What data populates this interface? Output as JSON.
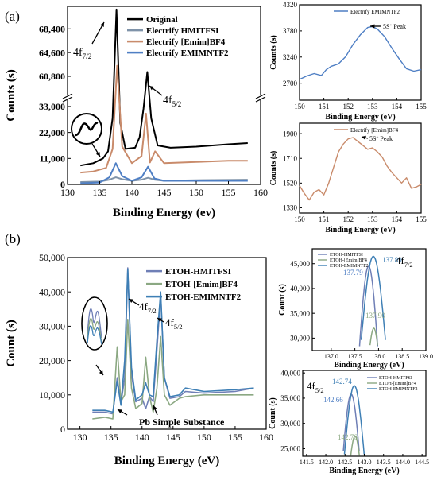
{
  "colors": {
    "original": "#000000",
    "hmitfsi": "#7f93a9",
    "emim_bf4": "#c98b6b",
    "emimntf2": "#4f7fc4",
    "etoh_hmitfsi": "#6f7fb6",
    "etoh_emim": "#8ba882",
    "etoh_emimntf2": "#3e7fb5"
  },
  "chart_data": [
    {
      "id": "a_main",
      "type": "line",
      "panel_label": "(a)",
      "xlabel": "Binding Energy (ev)",
      "ylabel": "Counts (s)",
      "xlim": [
        130,
        160
      ],
      "xticks": [
        "130",
        "135",
        "140",
        "145",
        "150",
        "155",
        "160"
      ],
      "yticks": [
        "0",
        "11,000",
        "22,000",
        "33,000",
        "60,800",
        "64,600",
        "68,400"
      ],
      "legend": [
        "Original",
        "Electrify HMITFSI",
        "Electrify [Emim]BF4",
        "Electrify EMIMNTF2"
      ],
      "annotations": [
        {
          "base": "4f",
          "sub": "7/2"
        },
        {
          "base": "4f",
          "sub": "5/2"
        }
      ],
      "series": [
        {
          "name": "Original",
          "color": "#000000",
          "x": [
            132,
            134,
            135.5,
            136.3,
            137,
            137.6,
            138.2,
            139,
            140.5,
            141.2,
            141.8,
            142.4,
            143,
            144,
            146,
            150,
            155,
            158
          ],
          "y": [
            8000,
            9000,
            11000,
            14000,
            28000,
            71500,
            26000,
            15000,
            15500,
            20000,
            32000,
            61500,
            28000,
            16500,
            15500,
            16000,
            17000,
            17500
          ]
        },
        {
          "name": "Electrify HMITFSI",
          "color": "#7f93a9",
          "x": [
            132,
            135,
            136.5,
            137.5,
            138.5,
            140,
            141.5,
            142.5,
            143.5,
            145,
            150,
            158
          ],
          "y": [
            1000,
            1200,
            2000,
            3000,
            2200,
            1500,
            2000,
            2800,
            2000,
            1500,
            1800,
            2000
          ]
        },
        {
          "name": "Electrify [Emim]BF4",
          "color": "#c98b6b",
          "x": [
            132,
            134,
            136,
            137,
            137.7,
            138.5,
            140,
            141.5,
            142.2,
            142.8,
            143.6,
            145,
            150,
            155,
            158
          ],
          "y": [
            5000,
            5500,
            7000,
            15000,
            62500,
            16000,
            9000,
            12000,
            30000,
            47000,
            14000,
            9000,
            9500,
            10000,
            10000
          ]
        },
        {
          "name": "Electrify EMIMNTF2",
          "color": "#4f7fc4",
          "x": [
            132,
            135,
            136.5,
            137.5,
            138.5,
            140,
            141.5,
            142.5,
            143.5,
            145,
            150,
            158
          ],
          "y": [
            500,
            800,
            3000,
            9000,
            3500,
            1500,
            3000,
            7500,
            2500,
            1500,
            1500,
            1500
          ]
        }
      ]
    },
    {
      "id": "a_top_inset",
      "type": "line",
      "xlabel": "Binding Energy (eV)",
      "ylabel": "Counts (s)",
      "xlim": [
        150,
        155
      ],
      "ylim": [
        2350,
        4320
      ],
      "xticks": [
        "150",
        "151",
        "152",
        "153",
        "154",
        "155"
      ],
      "yticks": [
        "2700",
        "3240",
        "3780",
        "4320"
      ],
      "legend": [
        "Electrify EMIMNTF2"
      ],
      "peak_label": {
        "base": "5S",
        "sup": "+",
        "rest": " Peak"
      },
      "series": [
        {
          "name": "Electrify EMIMNTF2",
          "color": "#4f7fc4",
          "x": [
            150,
            150.3,
            150.6,
            150.9,
            151.1,
            151.3,
            151.6,
            151.9,
            152.2,
            152.5,
            152.8,
            153,
            153.2,
            153.5,
            153.8,
            154.1,
            154.4,
            154.7,
            155
          ],
          "y": [
            2780,
            2850,
            2900,
            2860,
            2980,
            3050,
            3100,
            3250,
            3500,
            3700,
            3850,
            3870,
            3820,
            3660,
            3420,
            3200,
            3000,
            2950,
            2980
          ]
        }
      ]
    },
    {
      "id": "a_bottom_inset",
      "type": "line",
      "xlabel": "Binding Energy (eV)",
      "ylabel": "Counts (s)",
      "xlim": [
        150,
        155
      ],
      "ylim": [
        1290,
        1980
      ],
      "xticks": [
        "150",
        "151",
        "152",
        "153",
        "154",
        "155"
      ],
      "yticks": [
        "1330",
        "1520",
        "1710",
        "1900"
      ],
      "legend": [
        "Electrify [Emim]BF4"
      ],
      "peak_label": {
        "base": "5S",
        "sup": "+",
        "rest": " Peak"
      },
      "series": [
        {
          "name": "Electrify [Emim]BF4",
          "color": "#c98b6b",
          "x": [
            150,
            150.2,
            150.4,
            150.6,
            150.8,
            151,
            151.2,
            151.4,
            151.6,
            151.8,
            152,
            152.2,
            152.4,
            152.6,
            152.8,
            153,
            153.2,
            153.4,
            153.6,
            153.8,
            154,
            154.2,
            154.4,
            154.6,
            154.8,
            155
          ],
          "y": [
            1500,
            1440,
            1390,
            1450,
            1470,
            1430,
            1520,
            1640,
            1760,
            1820,
            1860,
            1870,
            1840,
            1810,
            1780,
            1790,
            1760,
            1720,
            1650,
            1600,
            1560,
            1520,
            1560,
            1480,
            1490,
            1510
          ]
        }
      ]
    },
    {
      "id": "b_main",
      "type": "line",
      "panel_label": "(b)",
      "xlabel": "Binding Energy (eV)",
      "ylabel": "Count (s)",
      "xlim": [
        128,
        160
      ],
      "ylim": [
        0,
        50000
      ],
      "xticks": [
        "130",
        "135",
        "140",
        "145",
        "150",
        "155",
        "160"
      ],
      "yticks": [
        "0",
        "10,000",
        "20,000",
        "30,000",
        "40,000",
        "50,000"
      ],
      "legend": [
        "ETOH-HMITFSI",
        "ETOH-[Emim]BF4",
        "ETOH-EMIMNTF2"
      ],
      "annotations": [
        {
          "base": "4f",
          "sub": "7/2"
        },
        {
          "base": "4f",
          "sub": "5/2"
        }
      ],
      "substance_label": "Pb Simple Substance",
      "series": [
        {
          "name": "ETOH-HMITFSI",
          "color": "#6f7fb6",
          "x": [
            132,
            134,
            135.3,
            136,
            136.6,
            137.2,
            137.7,
            138.3,
            139,
            140,
            140.6,
            141.2,
            141.8,
            142.4,
            143,
            143.6,
            144.5,
            146,
            147,
            150,
            155,
            158
          ],
          "y": [
            5000,
            5000,
            4500,
            15000,
            7500,
            15000,
            47000,
            16000,
            8000,
            9000,
            6000,
            9500,
            8000,
            23000,
            39000,
            15000,
            9000,
            9500,
            11000,
            10500,
            11000,
            12000
          ]
        },
        {
          "name": "ETOH-[Emim]BF4",
          "color": "#8ba882",
          "x": [
            132,
            134,
            135.3,
            136,
            136.6,
            137.2,
            137.7,
            138.3,
            139,
            140,
            140.6,
            141.2,
            141.8,
            142.4,
            143,
            143.6,
            144.5,
            146,
            147,
            150,
            155,
            158
          ],
          "y": [
            3000,
            3500,
            3000,
            24000,
            8000,
            10000,
            32000,
            12000,
            6000,
            7500,
            21000,
            9500,
            5000,
            12000,
            27000,
            10000,
            7000,
            9000,
            9500,
            10000,
            10000,
            10000
          ]
        },
        {
          "name": "ETOH-EMIMNTF2",
          "color": "#3e7fb5",
          "x": [
            132,
            134,
            135.3,
            136,
            136.6,
            137.2,
            137.7,
            138.3,
            139,
            140,
            140.6,
            141.2,
            141.8,
            142.4,
            143,
            143.6,
            144.5,
            146,
            147,
            150,
            155,
            158
          ],
          "y": [
            5500,
            5500,
            5000,
            14000,
            7000,
            20000,
            46500,
            18000,
            8500,
            10000,
            13500,
            10000,
            9500,
            26000,
            40000,
            15000,
            9500,
            10000,
            12000,
            11000,
            11500,
            12000
          ]
        }
      ]
    },
    {
      "id": "b_top_inset",
      "type": "line",
      "xlabel": "Binding Energy (eV)",
      "ylabel": "Count (s)",
      "xlim": [
        136.6,
        139
      ],
      "ylim": [
        27500,
        48000
      ],
      "xticks": [
        "137.0",
        "137.5",
        "138.0",
        "138.5",
        "139.0"
      ],
      "yticks": [
        "30,000",
        "35,000",
        "40,000",
        "45,000"
      ],
      "legend": [
        "ETOH-HMITFSI",
        "ETOH-[Emim]BF4",
        "ETOH-EMIMNTF2"
      ],
      "corner_label": {
        "base": "4f",
        "sub": "7/2"
      },
      "peak_labels": [
        "137.89",
        "137.79",
        "137.90"
      ],
      "series": [
        {
          "name": "ETOH-HMITFSI",
          "color": "#6f7fb6",
          "peak_x": 137.79,
          "peak_y": 44500,
          "half_width": 0.3
        },
        {
          "name": "ETOH-[Emim]BF4",
          "color": "#8ba882",
          "peak_x": 137.9,
          "peak_y": 32000,
          "half_width": 0.25
        },
        {
          "name": "ETOH-EMIMNTF2",
          "color": "#3e7fb5",
          "peak_x": 137.89,
          "peak_y": 46500,
          "half_width": 0.4
        }
      ]
    },
    {
      "id": "b_bottom_inset",
      "type": "line",
      "xlabel": "Binding Energy (eV)",
      "ylabel": "Count (s)",
      "xlim": [
        141.4,
        144.6
      ],
      "ylim": [
        23500,
        40500
      ],
      "xticks": [
        "141.5",
        "142.0",
        "142.5",
        "143.0",
        "143.5",
        "144.0",
        "144.5"
      ],
      "yticks": [
        "25,000",
        "30,000",
        "35,000",
        "40,000"
      ],
      "legend": [
        "ETOH-HMITFSI",
        "ETOH-[Emim]BF4",
        "ETOH-EMIMNTF2"
      ],
      "corner_label": {
        "base": "4f",
        "sub": "5/2"
      },
      "peak_labels": [
        "142.74",
        "142.66",
        "142.76"
      ],
      "series": [
        {
          "name": "ETOH-HMITFSI",
          "color": "#6f7fb6",
          "peak_x": 142.66,
          "peak_y": 35800,
          "half_width": 0.35
        },
        {
          "name": "ETOH-[Emim]BF4",
          "color": "#8ba882",
          "peak_x": 142.76,
          "peak_y": 27500,
          "half_width": 0.3
        },
        {
          "name": "ETOH-EMIMNTF2",
          "color": "#3e7fb5",
          "peak_x": 142.74,
          "peak_y": 37500,
          "half_width": 0.4
        }
      ]
    }
  ]
}
